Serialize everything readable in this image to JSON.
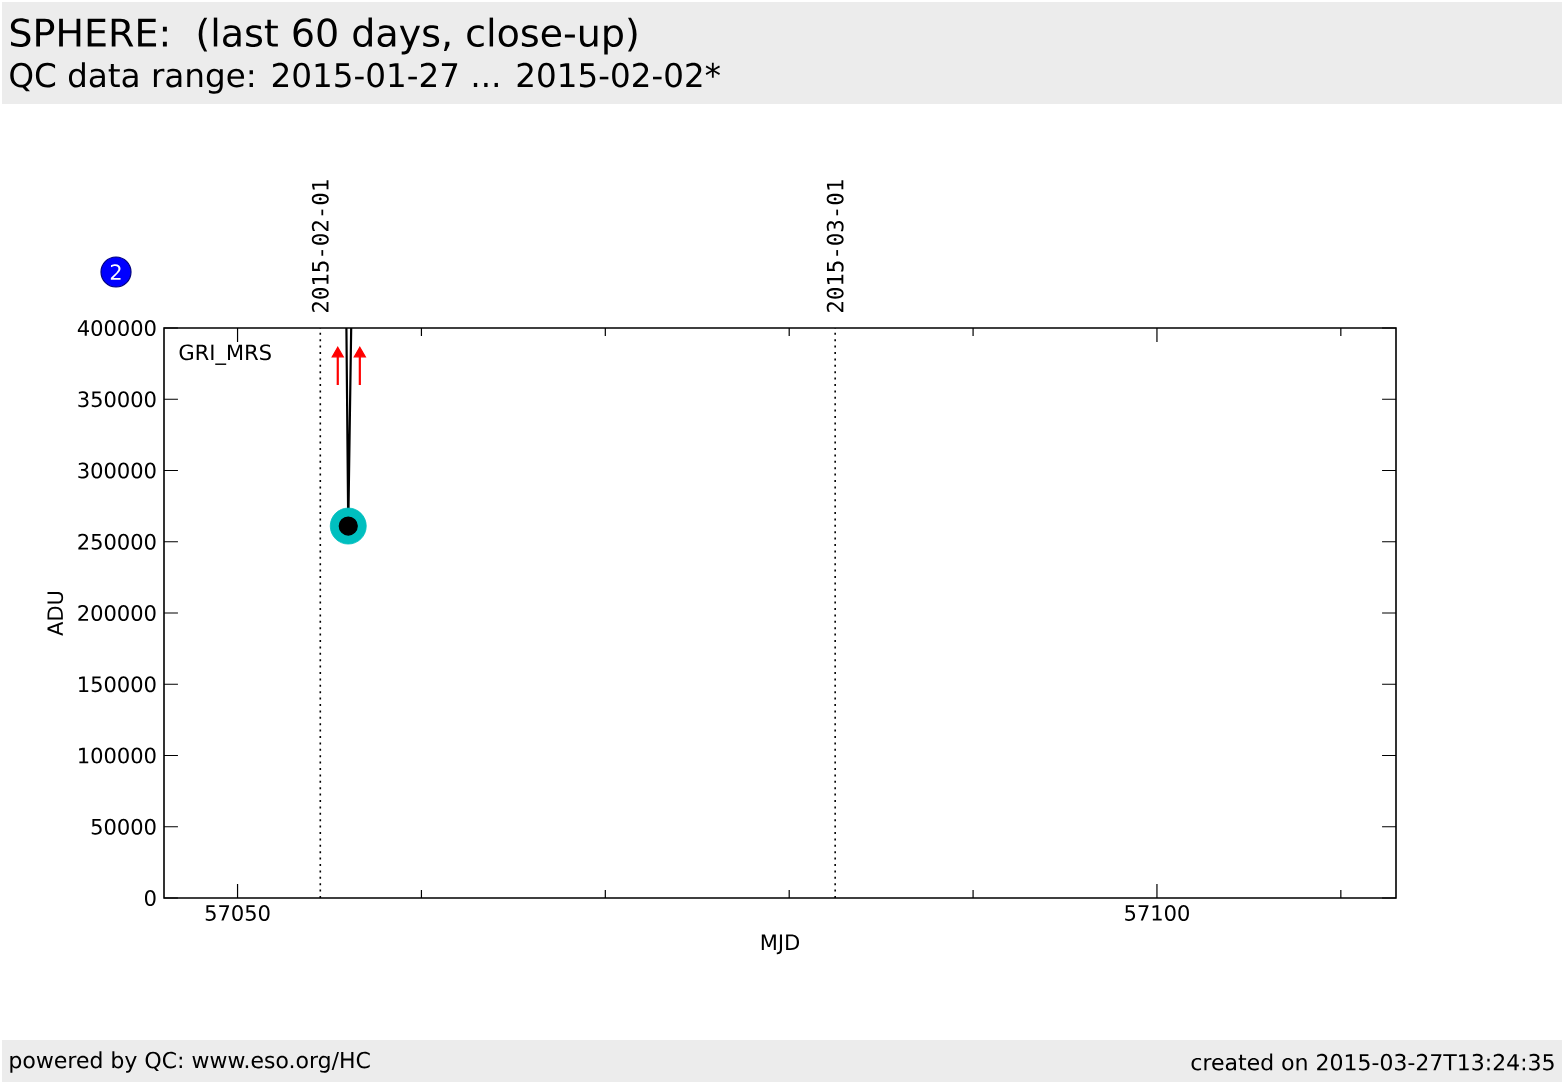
{
  "chart_data": {
    "type": "line",
    "title": "SPHERE:  (last 60 days, close-up)",
    "subtitle": "QC data range: 2015-01-27 ... 2015-02-02*",
    "xlabel": "MJD",
    "ylabel": "ADU",
    "annotations": [
      "GRI_MRS",
      "2",
      "powered by QC: www.eso.org/HC",
      "created on 2015-03-27T13:24:35",
      {
        "text": "2015-02-01",
        "x": 57054.5,
        "y": 400000
      },
      {
        "text": "2015-03-01",
        "x": 57082.5,
        "y": 400000
      }
    ],
    "xlim": [
      57046,
      57113
    ],
    "xticks": [
      57050,
      {
        "value": 57060,
        "label": null
      },
      {
        "value": 57070,
        "label": null
      },
      {
        "value": 57080,
        "label": null
      },
      {
        "value": 57090,
        "label": null
      },
      57100,
      {
        "value": 57110,
        "label": null
      }
    ],
    "ylim": [
      0,
      400000
    ],
    "yticks": [
      0,
      50000,
      100000,
      150000,
      200000,
      250000,
      300000,
      350000,
      400000
    ],
    "ref_lines": [
      {
        "axis": "x",
        "value": 57054.5,
        "line_style": "dotted",
        "color": "#000000"
      },
      {
        "axis": "x",
        "value": 57082.5,
        "line_style": "dotted",
        "color": "#000000"
      }
    ],
    "series": [
      {
        "color": "#000000",
        "marker": "none",
        "x": [
          57055.92,
          57056.02,
          57056.18
        ],
        "values": [
          400000,
          261000,
          400000
        ]
      },
      {
        "type": "bubble",
        "color": "#00bfbf",
        "x": [
          57056.02
        ],
        "values": [
          261000
        ],
        "sizes": [
          1
        ]
      },
      {
        "type": "scatter",
        "color": "#000000",
        "marker": "circle",
        "x": [
          57056.02
        ],
        "values": [
          261000
        ]
      },
      {
        "type": "scatter",
        "color": "#ff0000",
        "marker": "triangle",
        "x": [
          57055.45,
          57056.65
        ],
        "values": [
          382000,
          382000
        ],
        "errors": [
          [
            360000,
            382000
          ],
          [
            360000,
            382000
          ]
        ]
      }
    ]
  }
}
